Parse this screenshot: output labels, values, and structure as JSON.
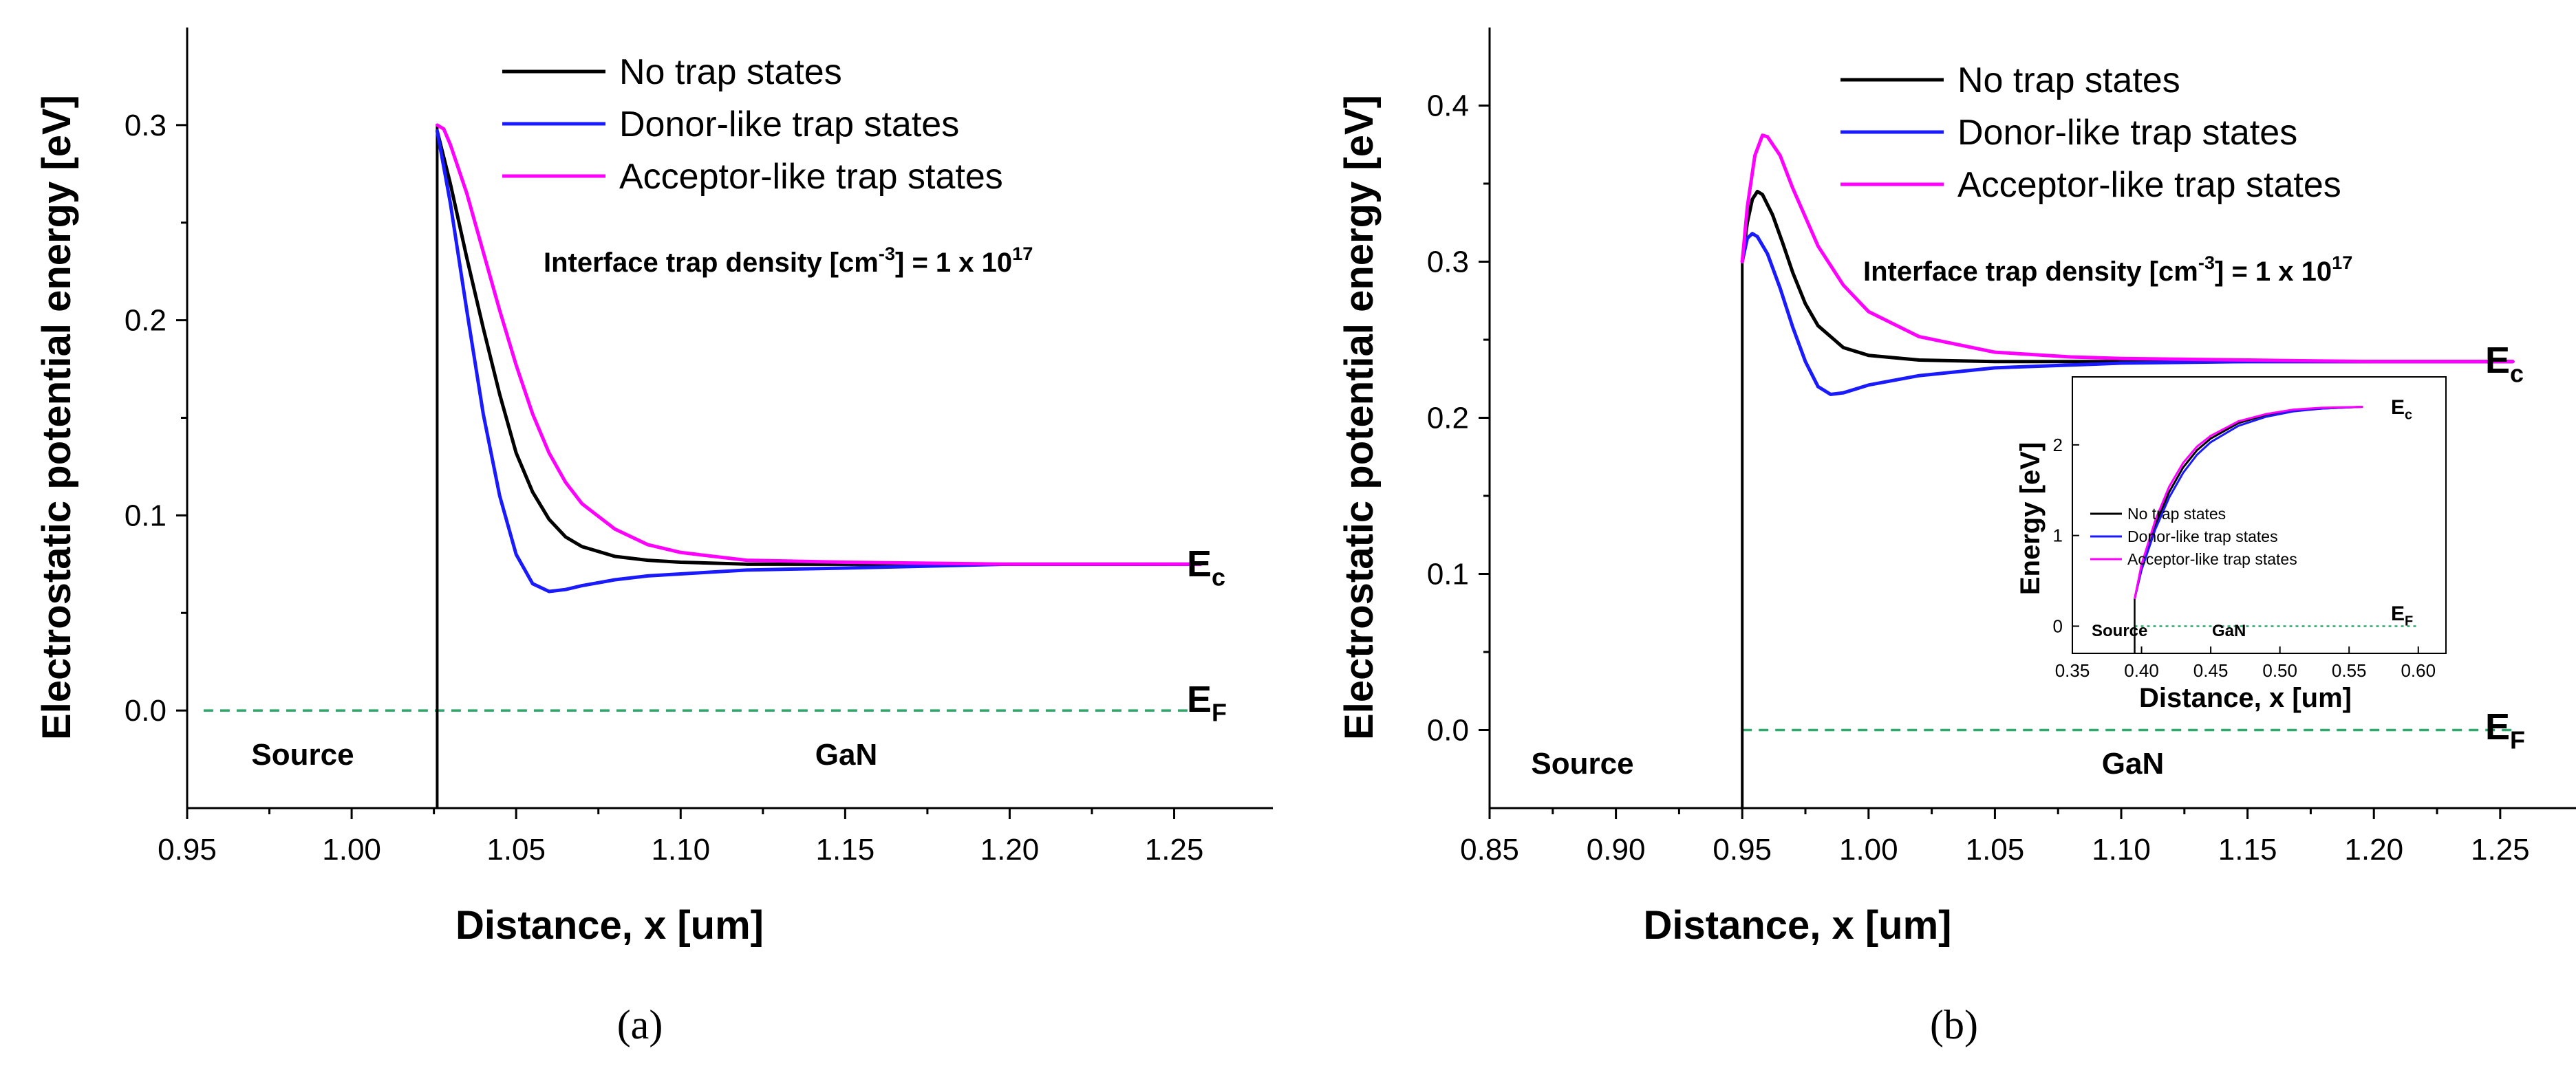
{
  "colors": {
    "no_trap": "#000000",
    "donor": "#1a1aff",
    "acceptor": "#ff00ff",
    "fermi": "#2ea86b",
    "axis": "#000000"
  },
  "chart_data": [
    {
      "type": "line",
      "panel_label": "(a)",
      "title": "",
      "xlabel": "Distance, x [um]",
      "ylabel": "Electrostatic potential energy [eV]",
      "xlim": [
        0.95,
        1.28
      ],
      "ylim": [
        -0.05,
        0.35
      ],
      "xticks": [
        0.95,
        1.0,
        1.05,
        1.1,
        1.15,
        1.2,
        1.25
      ],
      "xtick_labels": [
        "0.95",
        "1.00",
        "1.05",
        "1.10",
        "1.15",
        "1.20",
        "1.25"
      ],
      "yticks": [
        0.0,
        0.1,
        0.2,
        0.3
      ],
      "ytick_labels": [
        "0.0",
        "0.1",
        "0.2",
        "0.3"
      ],
      "legend": [
        "No trap states",
        "Donor-like trap states",
        "Acceptor-like trap states"
      ],
      "legend_position": "top-right",
      "annotations": {
        "density_prefix": "Interface trap density [cm",
        "density_exp": "-3",
        "density_mid": "] = 1 x 10",
        "density_pow": "17",
        "source": "Source",
        "gan": "GaN",
        "ec_main": "E",
        "ec_sub": "c",
        "ef_main": "E",
        "ef_sub": "F"
      },
      "interface_x": 1.026,
      "fermi_level": [
        [
          0.955,
          0.0
        ],
        [
          1.26,
          0.0
        ]
      ],
      "series": [
        {
          "name": "No trap states",
          "x": [
            1.026,
            1.03,
            1.035,
            1.04,
            1.045,
            1.05,
            1.055,
            1.06,
            1.065,
            1.07,
            1.08,
            1.09,
            1.1,
            1.12,
            1.15,
            1.2,
            1.258
          ],
          "y": [
            0.297,
            0.27,
            0.232,
            0.196,
            0.162,
            0.132,
            0.112,
            0.098,
            0.089,
            0.084,
            0.079,
            0.077,
            0.076,
            0.075,
            0.075,
            0.075,
            0.075
          ]
        },
        {
          "name": "Donor-like trap states",
          "x": [
            1.026,
            1.03,
            1.035,
            1.04,
            1.045,
            1.05,
            1.055,
            1.06,
            1.065,
            1.07,
            1.08,
            1.09,
            1.1,
            1.12,
            1.15,
            1.2,
            1.258
          ],
          "y": [
            0.297,
            0.26,
            0.205,
            0.152,
            0.11,
            0.08,
            0.065,
            0.061,
            0.062,
            0.064,
            0.067,
            0.069,
            0.07,
            0.072,
            0.073,
            0.075,
            0.075
          ]
        },
        {
          "name": "Acceptor-like trap states",
          "x": [
            1.026,
            1.028,
            1.03,
            1.035,
            1.04,
            1.045,
            1.05,
            1.055,
            1.06,
            1.065,
            1.07,
            1.08,
            1.09,
            1.1,
            1.12,
            1.15,
            1.2,
            1.258
          ],
          "y": [
            0.3,
            0.298,
            0.29,
            0.265,
            0.235,
            0.205,
            0.177,
            0.152,
            0.132,
            0.117,
            0.106,
            0.093,
            0.085,
            0.081,
            0.077,
            0.076,
            0.075,
            0.075
          ]
        }
      ]
    },
    {
      "type": "line",
      "panel_label": "(b)",
      "title": "",
      "xlabel": "Distance, x [um]",
      "ylabel": "Electrostatic potential energy [eV]",
      "xlim": [
        0.85,
        1.28
      ],
      "ylim": [
        -0.05,
        0.45
      ],
      "xticks": [
        0.85,
        0.9,
        0.95,
        1.0,
        1.05,
        1.1,
        1.15,
        1.2,
        1.25
      ],
      "xtick_labels": [
        "0.85",
        "0.90",
        "0.95",
        "1.00",
        "1.05",
        "1.10",
        "1.15",
        "1.20",
        "1.25"
      ],
      "yticks": [
        0.0,
        0.1,
        0.2,
        0.3,
        0.4
      ],
      "ytick_labels": [
        "0.0",
        "0.1",
        "0.2",
        "0.3",
        "0.4"
      ],
      "legend": [
        "No trap states",
        "Donor-like trap states",
        "Acceptor-like trap states"
      ],
      "legend_position": "top-right",
      "annotations": {
        "density_prefix": "Interface trap density [cm",
        "density_exp": "-3",
        "density_mid": "] = 1 x 10",
        "density_pow": "17",
        "source": "Source",
        "gan": "GaN",
        "ec_main": "E",
        "ec_sub": "c",
        "ef_main": "E",
        "ef_sub": "F"
      },
      "interface_x": 0.95,
      "fermi_level": [
        [
          0.95,
          0.0
        ],
        [
          1.255,
          0.0
        ]
      ],
      "series": [
        {
          "name": "No trap states",
          "x": [
            0.95,
            0.952,
            0.954,
            0.956,
            0.958,
            0.962,
            0.966,
            0.97,
            0.975,
            0.98,
            0.99,
            1.0,
            1.02,
            1.05,
            1.1,
            1.15,
            1.2,
            1.255
          ],
          "y": [
            0.3,
            0.325,
            0.34,
            0.345,
            0.343,
            0.33,
            0.312,
            0.293,
            0.273,
            0.259,
            0.245,
            0.24,
            0.237,
            0.236,
            0.236,
            0.236,
            0.236,
            0.236
          ]
        },
        {
          "name": "Donor-like trap states",
          "x": [
            0.95,
            0.952,
            0.954,
            0.956,
            0.96,
            0.965,
            0.97,
            0.975,
            0.98,
            0.985,
            0.99,
            1.0,
            1.02,
            1.05,
            1.1,
            1.15,
            1.2,
            1.255
          ],
          "y": [
            0.3,
            0.315,
            0.318,
            0.316,
            0.305,
            0.283,
            0.258,
            0.236,
            0.22,
            0.215,
            0.216,
            0.221,
            0.227,
            0.232,
            0.235,
            0.236,
            0.236,
            0.236
          ]
        },
        {
          "name": "Acceptor-like trap states",
          "x": [
            0.95,
            0.952,
            0.955,
            0.958,
            0.96,
            0.965,
            0.97,
            0.98,
            0.99,
            1.0,
            1.02,
            1.05,
            1.08,
            1.1,
            1.15,
            1.2,
            1.255
          ],
          "y": [
            0.3,
            0.335,
            0.368,
            0.381,
            0.38,
            0.368,
            0.347,
            0.31,
            0.285,
            0.268,
            0.252,
            0.242,
            0.239,
            0.238,
            0.237,
            0.236,
            0.236
          ]
        }
      ],
      "inset": {
        "type": "line",
        "xlabel": "Distance, x [um]",
        "ylabel": "Energy [eV]",
        "xlim": [
          0.35,
          0.62
        ],
        "ylim": [
          -0.3,
          2.75
        ],
        "xticks": [
          0.35,
          0.4,
          0.45,
          0.5,
          0.55,
          0.6
        ],
        "xtick_labels": [
          "0.35",
          "0.40",
          "0.45",
          "0.50",
          "0.55",
          "0.60"
        ],
        "yticks": [
          0,
          1,
          2
        ],
        "ytick_labels": [
          "0",
          "1",
          "2"
        ],
        "legend": [
          "No trap states",
          "Donor-like trap states",
          "Acceptor-like trap states"
        ],
        "legend_position": "lower-right",
        "annotations": {
          "source": "Source",
          "gan": "GaN",
          "ec_main": "E",
          "ec_sub": "c",
          "ef_main": "E",
          "ef_sub": "F"
        },
        "interface_x": 0.395,
        "fermi_level": [
          [
            0.395,
            0.0
          ],
          [
            0.6,
            0.0
          ]
        ],
        "series": [
          {
            "name": "No trap states",
            "x": [
              0.395,
              0.4,
              0.41,
              0.42,
              0.43,
              0.44,
              0.45,
              0.47,
              0.49,
              0.51,
              0.53,
              0.56
            ],
            "y": [
              0.3,
              0.65,
              1.12,
              1.48,
              1.75,
              1.94,
              2.07,
              2.24,
              2.33,
              2.38,
              2.4,
              2.42
            ]
          },
          {
            "name": "Donor-like trap states",
            "x": [
              0.395,
              0.4,
              0.41,
              0.42,
              0.43,
              0.44,
              0.45,
              0.47,
              0.49,
              0.51,
              0.53,
              0.56
            ],
            "y": [
              0.3,
              0.62,
              1.07,
              1.42,
              1.69,
              1.89,
              2.03,
              2.21,
              2.31,
              2.37,
              2.4,
              2.42
            ]
          },
          {
            "name": "Acceptor-like trap states",
            "x": [
              0.395,
              0.4,
              0.41,
              0.42,
              0.43,
              0.44,
              0.45,
              0.47,
              0.49,
              0.51,
              0.53,
              0.56
            ],
            "y": [
              0.3,
              0.68,
              1.17,
              1.54,
              1.8,
              1.98,
              2.1,
              2.26,
              2.34,
              2.39,
              2.41,
              2.42
            ]
          }
        ]
      }
    }
  ]
}
